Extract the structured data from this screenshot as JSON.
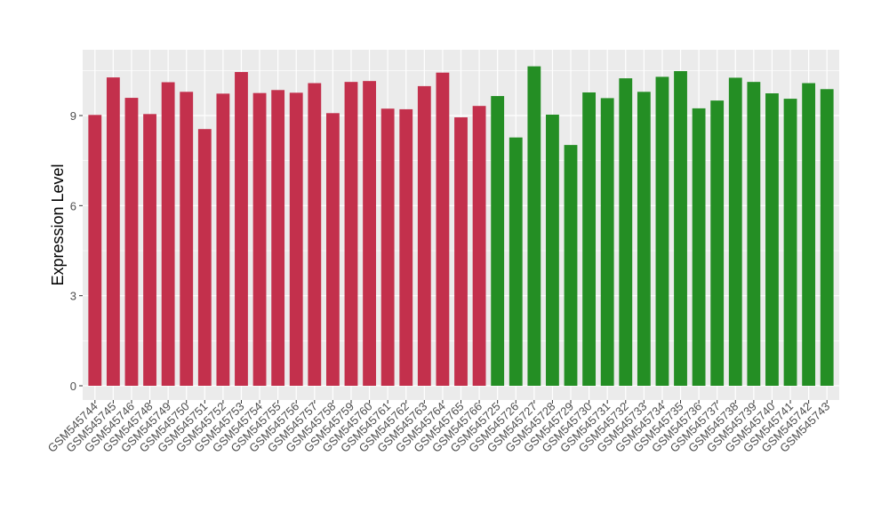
{
  "chart_data": {
    "type": "bar",
    "title": "",
    "xlabel": "",
    "ylabel": "Expression Level",
    "ylim": [
      0,
      11.2
    ],
    "yticks": [
      0,
      3,
      6,
      9
    ],
    "grid": true,
    "legend": "none",
    "categories": [
      "GSM545744",
      "GSM545745",
      "GSM545746",
      "GSM545748",
      "GSM545749",
      "GSM545750",
      "GSM545751",
      "GSM545752",
      "GSM545753",
      "GSM545754",
      "GSM545755",
      "GSM545756",
      "GSM545757",
      "GSM545758",
      "GSM545759",
      "GSM545760",
      "GSM545761",
      "GSM545762",
      "GSM545763",
      "GSM545764",
      "GSM545765",
      "GSM545766",
      "GSM545725",
      "GSM545726",
      "GSM545727",
      "GSM545728",
      "GSM545729",
      "GSM545730",
      "GSM545731",
      "GSM545732",
      "GSM545733",
      "GSM545734",
      "GSM545735",
      "GSM545736",
      "GSM545737",
      "GSM545738",
      "GSM545739",
      "GSM545740",
      "GSM545741",
      "GSM545742",
      "GSM545743"
    ],
    "values": [
      9.02,
      10.27,
      9.59,
      9.05,
      10.11,
      9.79,
      8.55,
      9.73,
      10.45,
      9.75,
      9.85,
      9.76,
      10.08,
      9.08,
      10.12,
      10.15,
      9.23,
      9.21,
      9.98,
      10.43,
      8.94,
      9.32,
      9.65,
      8.27,
      10.64,
      9.03,
      8.02,
      9.77,
      9.58,
      10.24,
      9.79,
      10.29,
      10.48,
      9.24,
      9.5,
      10.26,
      10.12,
      9.74,
      9.56,
      10.08,
      9.88
    ],
    "group_sizes": [
      22,
      19
    ],
    "colors": {
      "group1": "#C3304C",
      "group2": "#248E24",
      "panel_bg": "#EBEBEB",
      "grid": "#FFFFFF",
      "text": "#000000",
      "tick_text": "#4D4D4D"
    }
  }
}
